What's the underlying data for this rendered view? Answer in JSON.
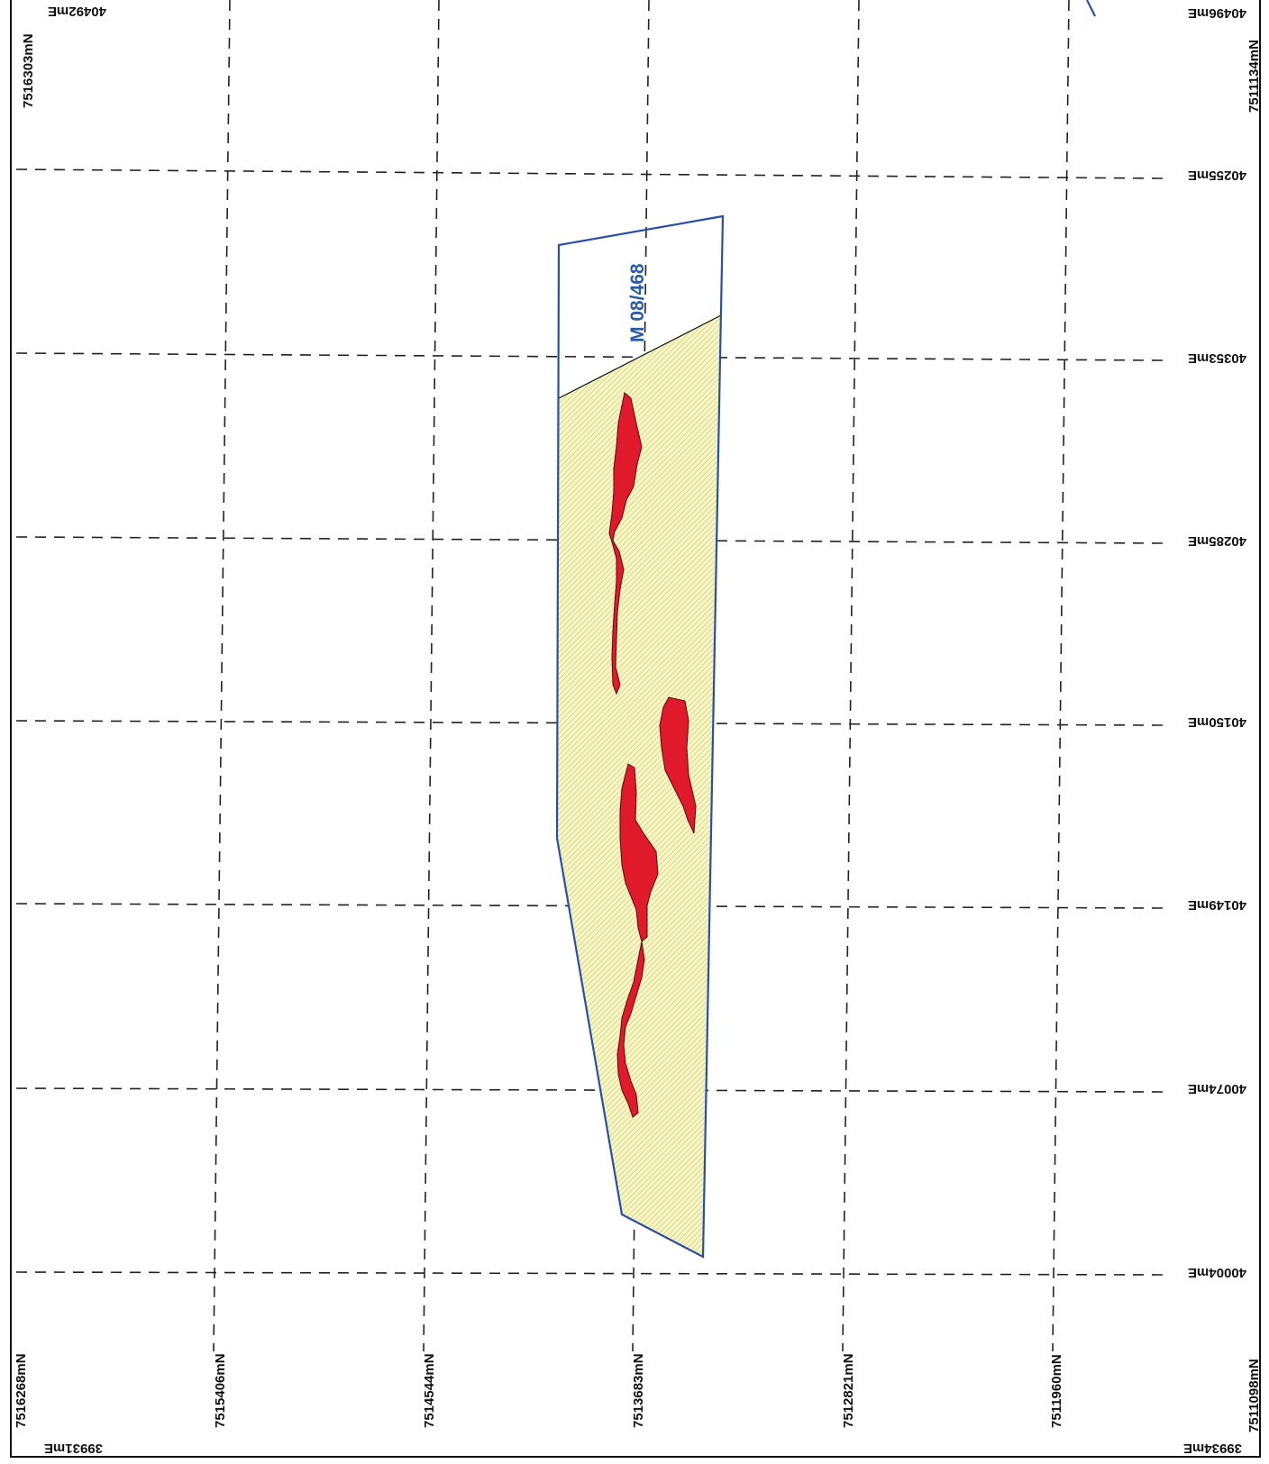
{
  "map": {
    "lease_label": "M 08/468",
    "northing_labels": {
      "top_left": "7516303mN",
      "top_right": "7511134mN",
      "bottom": [
        "7516268mN",
        "7515406mN",
        "7514544mN",
        "7513683mN",
        "7512821mN",
        "7511960mN",
        "7511098mN"
      ]
    },
    "easting_labels": {
      "top_left": "40492mE",
      "right": [
        "40496mE",
        "40255mE",
        "40353mE",
        "40285mE",
        "40150mE",
        "40149mE",
        "40074mE",
        "40004mE"
      ],
      "bottom_left": "39931mE",
      "bottom_right": "39934mE"
    },
    "colors": {
      "lease_outline": "#2a4fa8",
      "zone_fill": "#f3f2b8",
      "ore_body": "#e01a2a",
      "grid": "#222222"
    }
  }
}
